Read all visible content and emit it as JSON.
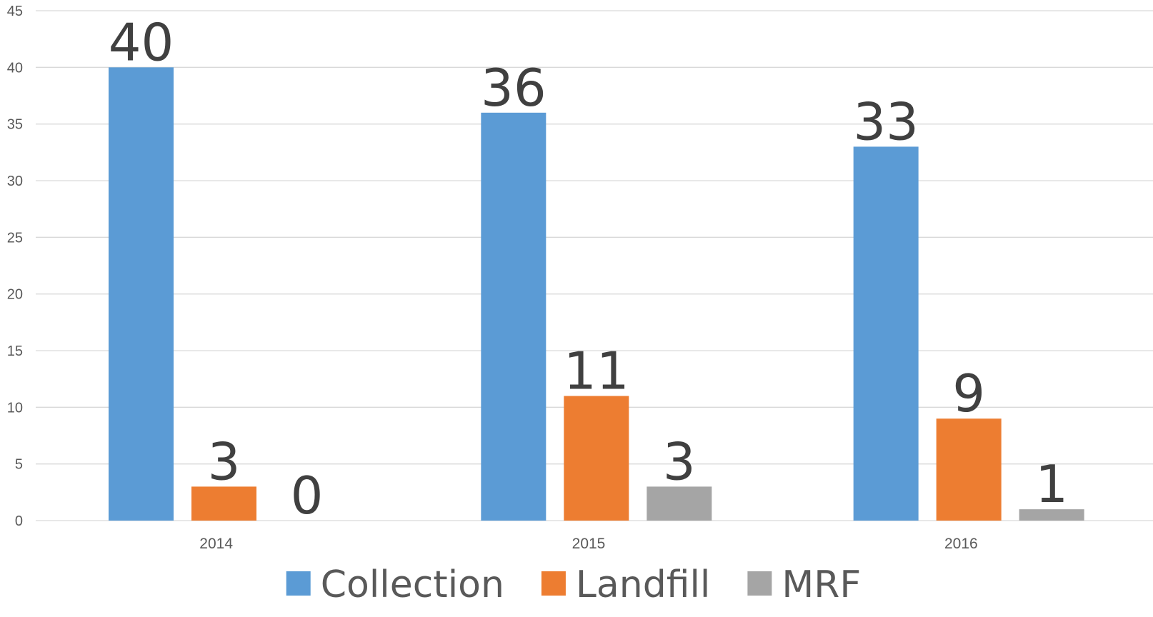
{
  "chart_data": {
    "type": "bar",
    "title": "",
    "xlabel": "",
    "ylabel": "",
    "categories": [
      "2014",
      "2015",
      "2016"
    ],
    "series": [
      {
        "name": "Collection",
        "values": [
          40,
          36,
          33
        ],
        "color": "#5B9BD5"
      },
      {
        "name": "Landfill",
        "values": [
          3,
          11,
          9
        ],
        "color": "#ED7D31"
      },
      {
        "name": "MRF",
        "values": [
          0,
          3,
          1
        ],
        "color": "#A5A5A5"
      }
    ],
    "ylim": [
      0,
      45
    ],
    "yticks": [
      0,
      5,
      10,
      15,
      20,
      25,
      30,
      35,
      40,
      45
    ],
    "grid": true,
    "gridColor": "#D9D9D9",
    "legend_position": "bottom",
    "data_labels": true
  }
}
